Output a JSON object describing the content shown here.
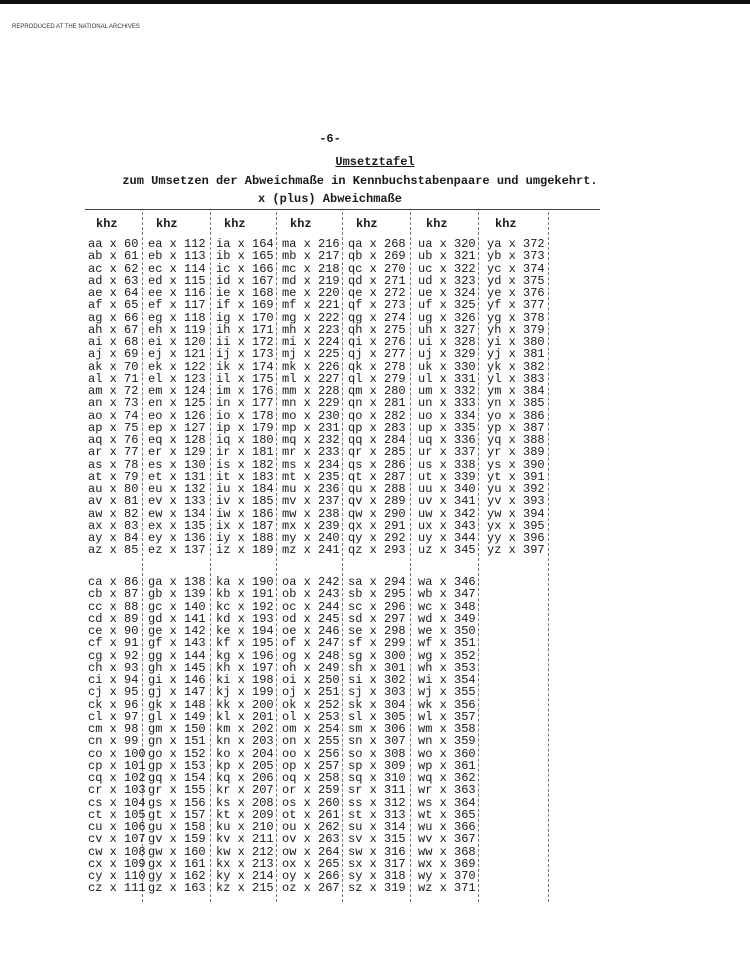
{
  "stamp": "REPRODUCED AT THE NATIONAL ARCHIVES",
  "page_number": "-6-",
  "title": "Umsetztafel",
  "subtitle": "zum Umsetzen der Abweichmaße in Kennbuchstabenpaare und umgekehrt.",
  "subtitle2": "x  (plus) Abweichmaße",
  "column_header": "khz",
  "top_block": [
    [
      "aa x 60",
      "ab x 61",
      "ac x 62",
      "ad x 63",
      "ae x 64",
      "af x 65",
      "ag x 66",
      "ah x 67",
      "ai x 68",
      "aj x 69",
      "ak x 70",
      "al x 71",
      "am x 72",
      "an x 73",
      "ao x 74",
      "ap x 75",
      "aq x 76",
      "ar x 77",
      "as x 78",
      "at x 79",
      "au x 80",
      "av x 81",
      "aw x 82",
      "ax x 83",
      "ay x 84",
      "az x 85"
    ],
    [
      "ea x 112",
      "eb x 113",
      "ec x 114",
      "ed x 115",
      "ee x 116",
      "ef x 117",
      "eg x 118",
      "eh x 119",
      "ei x 120",
      "ej x 121",
      "ek x 122",
      "el x 123",
      "em x 124",
      "en x 125",
      "eo x 126",
      "ep x 127",
      "eq x 128",
      "er x 129",
      "es x 130",
      "et x 131",
      "eu x 132",
      "ev x 133",
      "ew x 134",
      "ex x 135",
      "ey x 136",
      "ez x 137"
    ],
    [
      "ia x 164",
      "ib x 165",
      "ic x 166",
      "id x 167",
      "ie x 168",
      "if x 169",
      "ig x 170",
      "ih x 171",
      "ii x 172",
      "ij x 173",
      "ik x 174",
      "il x 175",
      "im x 176",
      "in x 177",
      "io x 178",
      "ip x 179",
      "iq x 180",
      "ir x 181",
      "is x 182",
      "it x 183",
      "iu x 184",
      "iv x 185",
      "iw x 186",
      "ix x 187",
      "iy x 188",
      "iz x 189"
    ],
    [
      "ma x 216",
      "mb x 217",
      "mc x 218",
      "md x 219",
      "me x 220",
      "mf x 221",
      "mg x 222",
      "mh x 223",
      "mi x 224",
      "mj x 225",
      "mk x 226",
      "ml x 227",
      "mm x 228",
      "mn x 229",
      "mo x 230",
      "mp x 231",
      "mq x 232",
      "mr x 233",
      "ms x 234",
      "mt x 235",
      "mu x 236",
      "mv x 237",
      "mw x 238",
      "mx x 239",
      "my x 240",
      "mz x 241"
    ],
    [
      "qa x 268",
      "qb x 269",
      "qc x 270",
      "qd x 271",
      "qe x 272",
      "qf x 273",
      "qg x 274",
      "qh x 275",
      "qi x 276",
      "qj x 277",
      "qk x 278",
      "ql x 279",
      "qm x 280",
      "qn x 281",
      "qo x 282",
      "qp x 283",
      "qq x 284",
      "qr x 285",
      "qs x 286",
      "qt x 287",
      "qu x 288",
      "qv x 289",
      "qw x 290",
      "qx x 291",
      "qy x 292",
      "qz x 293"
    ],
    [
      "ua x 320",
      "ub x 321",
      "uc x 322",
      "ud x 323",
      "ue x 324",
      "uf x 325",
      "ug x 326",
      "uh x 327",
      "ui x 328",
      "uj x 329",
      "uk x 330",
      "ul x 331",
      "um x 332",
      "un x 333",
      "uo x 334",
      "up x 335",
      "uq x 336",
      "ur x 337",
      "us x 338",
      "ut x 339",
      "uu x 340",
      "uv x 341",
      "uw x 342",
      "ux x 343",
      "uy x 344",
      "uz x 345"
    ],
    [
      "ya x 372",
      "yb x 373",
      "yc x 374",
      "yd x 375",
      "ye x 376",
      "yf x 377",
      "yg x 378",
      "yh x 379",
      "yi x 380",
      "yj x 381",
      "yk x 382",
      "yl x 383",
      "ym x 384",
      "yn x 385",
      "yo x 386",
      "yp x 387",
      "yq x 388",
      "yr x 389",
      "ys x 390",
      "yt x 391",
      "yu x 392",
      "yv x 393",
      "yw x 394",
      "yx x 395",
      "yy x 396",
      "yz x 397"
    ]
  ],
  "bottom_block": [
    [
      "ca x 86",
      "cb x 87",
      "cc x 88",
      "cd x 89",
      "ce x 90",
      "cf x 91",
      "cg x 92",
      "ch x 93",
      "ci x 94",
      "cj x 95",
      "ck x 96",
      "cl x 97",
      "cm x 98",
      "cn x 99",
      "co x 100",
      "cp x 101",
      "cq x 102",
      "cr x 103",
      "cs x 104",
      "ct x 105",
      "cu x 106",
      "cv x 107",
      "cw x 108",
      "cx x 109",
      "cy x 110",
      "cz x 111"
    ],
    [
      "ga x 138",
      "gb x 139",
      "gc x 140",
      "gd x 141",
      "ge x 142",
      "gf x 143",
      "gg x 144",
      "gh x 145",
      "gi x 146",
      "gj x 147",
      "gk x 148",
      "gl x 149",
      "gm x 150",
      "gn x 151",
      "go x 152",
      "gp x 153",
      "gq x 154",
      "gr x 155",
      "gs x 156",
      "gt x 157",
      "gu x 158",
      "gv x 159",
      "gw x 160",
      "gx x 161",
      "gy x 162",
      "gz x 163"
    ],
    [
      "ka x 190",
      "kb x 191",
      "kc x 192",
      "kd x 193",
      "ke x 194",
      "kf x 195",
      "kg x 196",
      "kh x 197",
      "ki x 198",
      "kj x 199",
      "kk x 200",
      "kl x 201",
      "km x 202",
      "kn x 203",
      "ko x 204",
      "kp x 205",
      "kq x 206",
      "kr x 207",
      "ks x 208",
      "kt x 209",
      "ku x 210",
      "kv x 211",
      "kw x 212",
      "kx x 213",
      "ky x 214",
      "kz x 215"
    ],
    [
      "oa x 242",
      "ob x 243",
      "oc x 244",
      "od x 245",
      "oe x 246",
      "of x 247",
      "og x 248",
      "oh x 249",
      "oi x 250",
      "oj x 251",
      "ok x 252",
      "ol x 253",
      "om x 254",
      "on x 255",
      "oo x 256",
      "op x 257",
      "oq x 258",
      "or x 259",
      "os x 260",
      "ot x 261",
      "ou x 262",
      "ov x 263",
      "ow x 264",
      "ox x 265",
      "oy x 266",
      "oz x 267"
    ],
    [
      "sa x 294",
      "sb x 295",
      "sc x 296",
      "sd x 297",
      "se x 298",
      "sf x 299",
      "sg x 300",
      "sh x 301",
      "si x 302",
      "sj x 303",
      "sk x 304",
      "sl x 305",
      "sm x 306",
      "sn x 307",
      "so x 308",
      "sp x 309",
      "sq x 310",
      "sr x 311",
      "ss x 312",
      "st x 313",
      "su x 314",
      "sv x 315",
      "sw x 316",
      "sx x 317",
      "sy x 318",
      "sz x 319"
    ],
    [
      "wa x 346",
      "wb x 347",
      "wc x 348",
      "wd x 349",
      "we x 350",
      "wf x 351",
      "wg x 352",
      "wh x 353",
      "wi x 354",
      "wj x 355",
      "wk x 356",
      "wl x 357",
      "wm x 358",
      "wn x 359",
      "wo x 360",
      "wp x 361",
      "wq x 362",
      "wr x 363",
      "ws x 364",
      "wt x 365",
      "wu x 366",
      "wv x 367",
      "ww x 368",
      "wx x 369",
      "wy x 370",
      "wz x 371"
    ]
  ]
}
